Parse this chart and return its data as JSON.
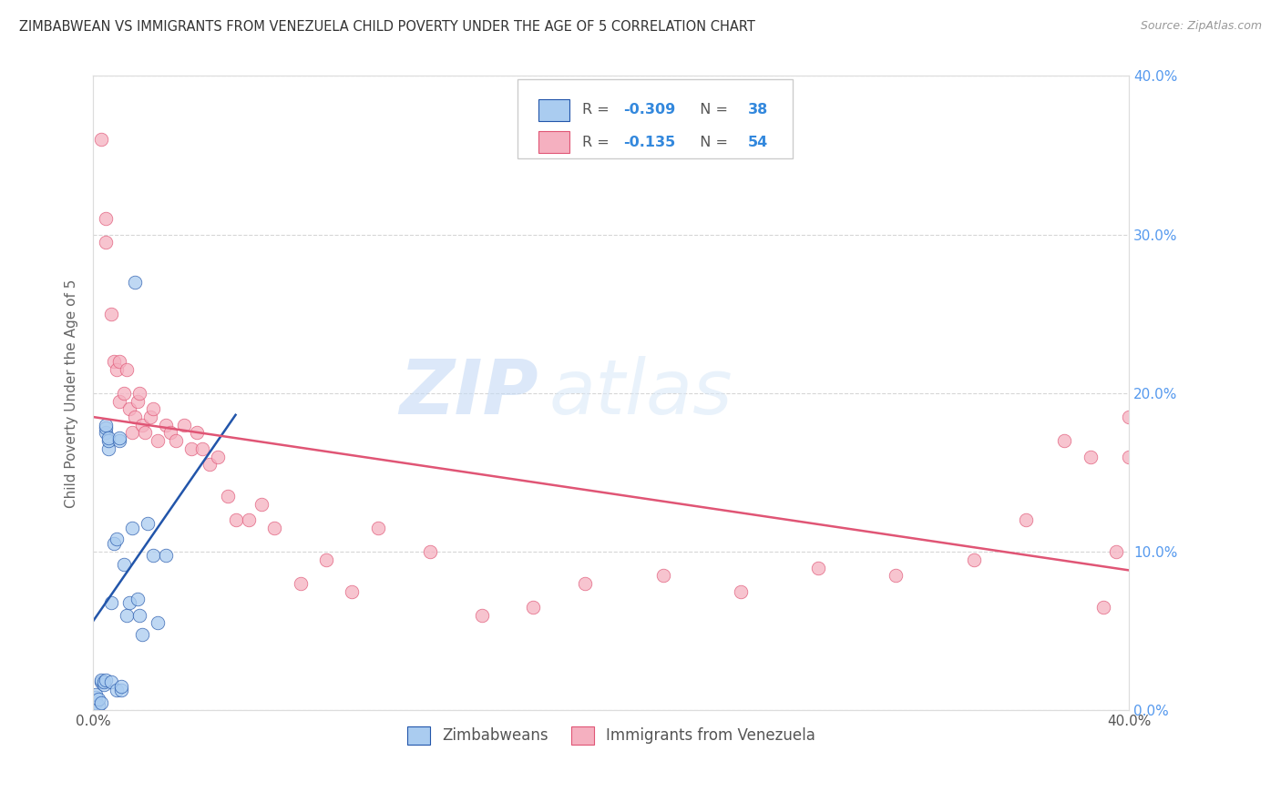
{
  "title": "ZIMBABWEAN VS IMMIGRANTS FROM VENEZUELA CHILD POVERTY UNDER THE AGE OF 5 CORRELATION CHART",
  "source": "Source: ZipAtlas.com",
  "ylabel": "Child Poverty Under the Age of 5",
  "legend_label1": "Zimbabweans",
  "legend_label2": "Immigrants from Venezuela",
  "R1": -0.309,
  "N1": 38,
  "R2": -0.135,
  "N2": 54,
  "color_blue": "#aaccf0",
  "color_pink": "#f5b0c0",
  "line_color_blue": "#2255aa",
  "line_color_pink": "#e05575",
  "watermark_zip": "ZIP",
  "watermark_atlas": "atlas",
  "xlim": [
    0.0,
    0.4
  ],
  "ylim": [
    0.0,
    0.4
  ],
  "zimbabwe_x": [
    0.001,
    0.001,
    0.001,
    0.002,
    0.002,
    0.003,
    0.003,
    0.003,
    0.004,
    0.004,
    0.005,
    0.005,
    0.005,
    0.005,
    0.006,
    0.006,
    0.006,
    0.007,
    0.007,
    0.008,
    0.009,
    0.009,
    0.01,
    0.01,
    0.011,
    0.011,
    0.012,
    0.013,
    0.014,
    0.015,
    0.016,
    0.017,
    0.018,
    0.019,
    0.021,
    0.023,
    0.025,
    0.028
  ],
  "zimbabwe_y": [
    0.005,
    0.008,
    0.01,
    0.003,
    0.007,
    0.005,
    0.018,
    0.019,
    0.016,
    0.018,
    0.175,
    0.178,
    0.18,
    0.019,
    0.165,
    0.17,
    0.172,
    0.018,
    0.068,
    0.105,
    0.108,
    0.013,
    0.17,
    0.172,
    0.013,
    0.015,
    0.092,
    0.06,
    0.068,
    0.115,
    0.27,
    0.07,
    0.06,
    0.048,
    0.118,
    0.098,
    0.055,
    0.098
  ],
  "venezuela_x": [
    0.003,
    0.005,
    0.005,
    0.007,
    0.008,
    0.009,
    0.01,
    0.01,
    0.012,
    0.013,
    0.014,
    0.015,
    0.016,
    0.017,
    0.018,
    0.019,
    0.02,
    0.022,
    0.023,
    0.025,
    0.028,
    0.03,
    0.032,
    0.035,
    0.038,
    0.04,
    0.042,
    0.045,
    0.048,
    0.052,
    0.055,
    0.06,
    0.065,
    0.07,
    0.08,
    0.09,
    0.1,
    0.11,
    0.13,
    0.15,
    0.17,
    0.19,
    0.22,
    0.25,
    0.28,
    0.31,
    0.34,
    0.36,
    0.375,
    0.385,
    0.39,
    0.395,
    0.4,
    0.4
  ],
  "venezuela_y": [
    0.36,
    0.31,
    0.295,
    0.25,
    0.22,
    0.215,
    0.22,
    0.195,
    0.2,
    0.215,
    0.19,
    0.175,
    0.185,
    0.195,
    0.2,
    0.18,
    0.175,
    0.185,
    0.19,
    0.17,
    0.18,
    0.175,
    0.17,
    0.18,
    0.165,
    0.175,
    0.165,
    0.155,
    0.16,
    0.135,
    0.12,
    0.12,
    0.13,
    0.115,
    0.08,
    0.095,
    0.075,
    0.115,
    0.1,
    0.06,
    0.065,
    0.08,
    0.085,
    0.075,
    0.09,
    0.085,
    0.095,
    0.12,
    0.17,
    0.16,
    0.065,
    0.1,
    0.185,
    0.16
  ]
}
